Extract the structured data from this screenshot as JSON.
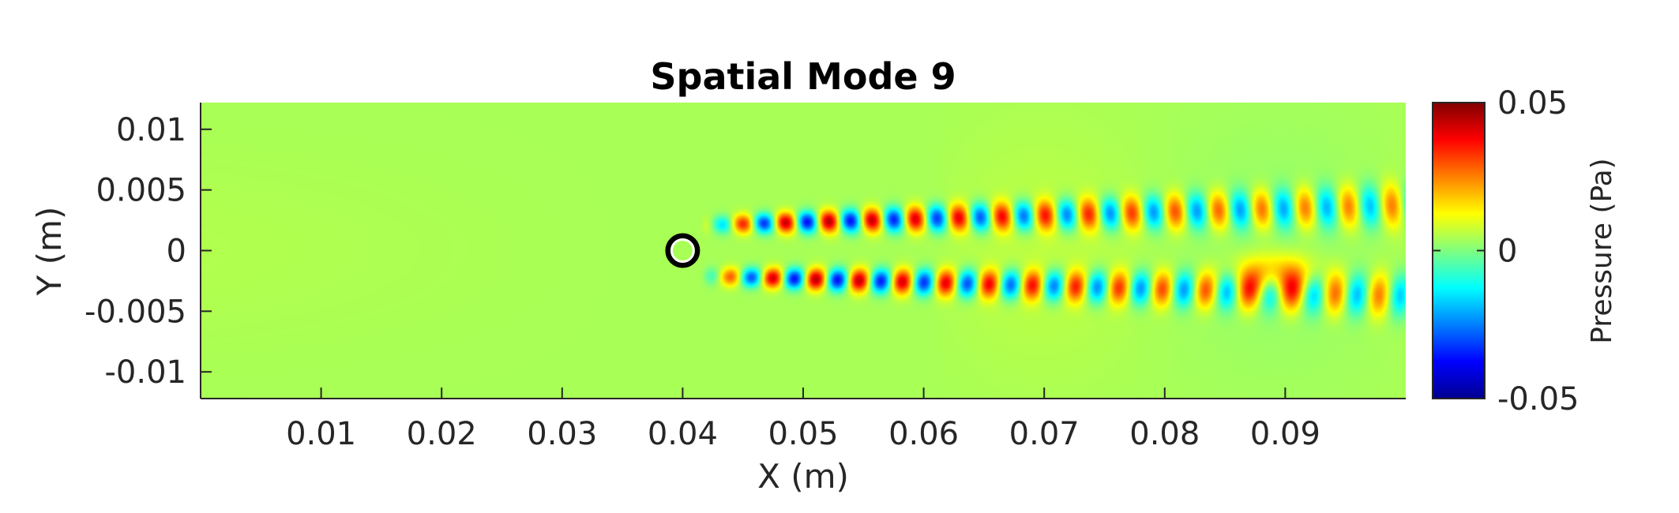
{
  "chart_data": {
    "type": "heatmap",
    "title": "Spatial Mode 9",
    "xlabel": "X (m)",
    "ylabel": "Y (m)",
    "xlim": [
      0,
      0.1
    ],
    "ylim": [
      -0.0122,
      0.0122
    ],
    "x_ticks": [
      0.01,
      0.02,
      0.03,
      0.04,
      0.05,
      0.06,
      0.07,
      0.08,
      0.09
    ],
    "x_tick_labels": [
      "0.01",
      "0.02",
      "0.03",
      "0.04",
      "0.05",
      "0.06",
      "0.07",
      "0.08",
      "0.09"
    ],
    "y_ticks": [
      0.01,
      0.005,
      0,
      -0.005,
      -0.01
    ],
    "y_tick_labels": [
      "0.01",
      "0.005",
      "0",
      "-0.005",
      "-0.01"
    ],
    "colorbar": {
      "label": "Pressure (Pa)",
      "colormap": "jet",
      "range": [
        -0.05,
        0.05
      ],
      "ticks": [
        0.05,
        0,
        -0.05
      ],
      "tick_labels": [
        "0.05",
        "0",
        "-0.05"
      ]
    },
    "cylinder": {
      "x": 0.04,
      "y": 0.0,
      "diameter": 0.0022
    },
    "wake_field": {
      "description_value_units": "Pa",
      "background_value": 0.004,
      "row_offset_y": 0.0021,
      "wavelength_x": 0.0036,
      "start_x": 0.0415,
      "peak_amplitude": 0.05
    }
  }
}
